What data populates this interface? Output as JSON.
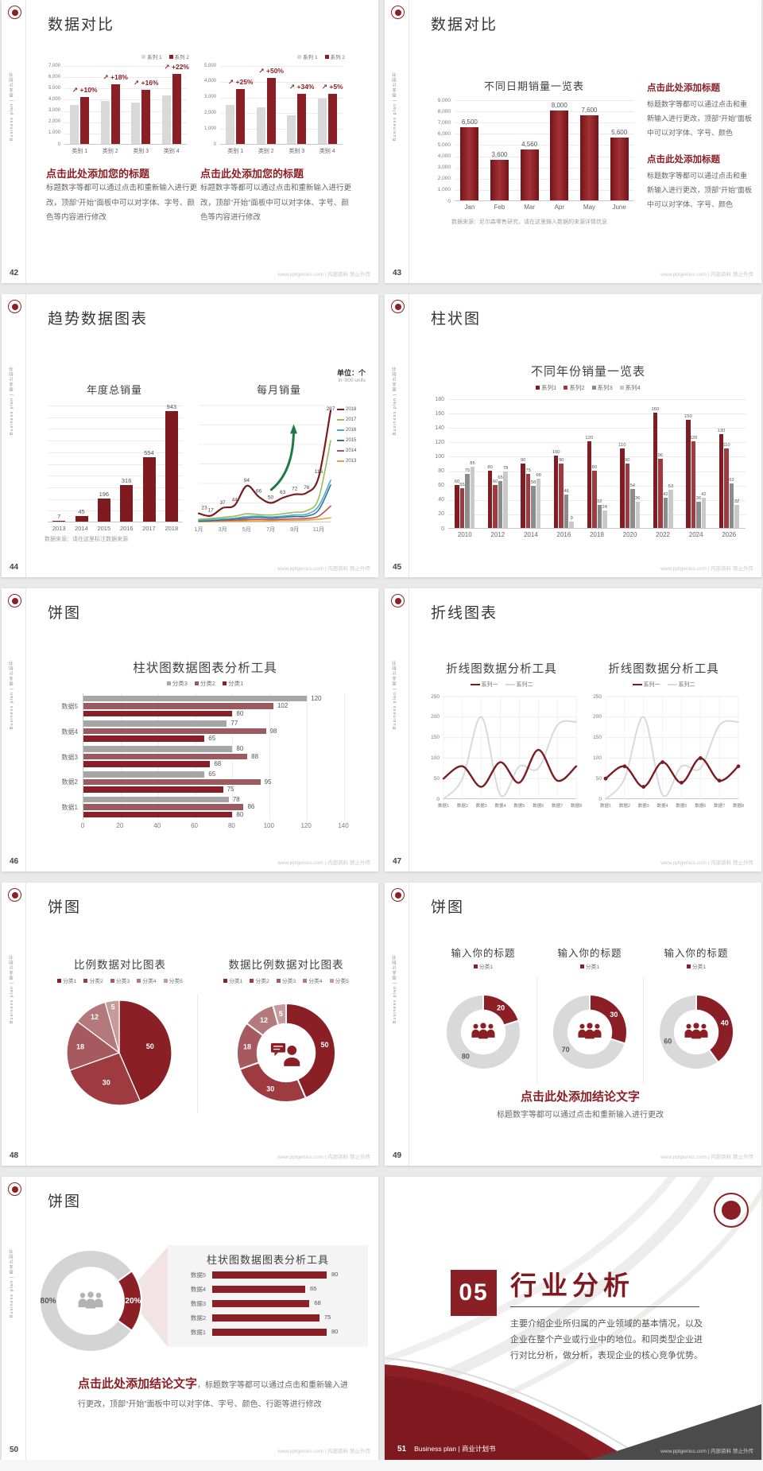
{
  "meta": {
    "footer": "www.pptgenius.com | 内部资料 禁止外传",
    "sidebar": "Business plan | 商业计划书",
    "accent_red": "#8a2026",
    "gray_bar": "#d9d9d9"
  },
  "slides": [
    {
      "page": "42",
      "title": "数据对比",
      "heading": "点击此处添加您的标题",
      "body": "标题数字等都可以通过点击和重新输入进行更改，顶部“开始”面板中可以对字体、字号、颜色等内容进行修改",
      "charts": [
        {
          "type": "vbar",
          "categories": [
            "类别 1",
            "类别 2",
            "类别 3",
            "类别 4"
          ],
          "ymax": 7000,
          "ystep": 1000,
          "thousands": true,
          "pct_color": "#8a2026",
          "pct_labels": [
            "+10%",
            "+18%",
            "+16%",
            "+22%"
          ],
          "series": [
            {
              "name": "系列 1",
              "color": "#d9d9d9",
              "values": [
                3500,
                3800,
                3700,
                4300
              ]
            },
            {
              "name": "系列 2",
              "color": "#8a2026",
              "values": [
                4200,
                5300,
                4800,
                6200
              ]
            }
          ]
        },
        {
          "type": "vbar",
          "categories": [
            "类别 1",
            "类别 2",
            "类别 3",
            "类别 4"
          ],
          "ymax": 5000,
          "ystep": 1000,
          "thousands": true,
          "pct_color": "#8a2026",
          "pct_labels": [
            "+25%",
            "+50%",
            "+34%",
            "+5%"
          ],
          "series": [
            {
              "name": "系列 1",
              "color": "#d9d9d9",
              "values": [
                2500,
                2300,
                1800,
                2900
              ]
            },
            {
              "name": "系列 2",
              "color": "#8a2026",
              "values": [
                3500,
                4200,
                3200,
                3200
              ]
            }
          ]
        }
      ]
    },
    {
      "page": "43",
      "title": "数据对比",
      "footnote": "数据来源：尼尔森零售研究，请在这里输入数据的来源详情信息",
      "blocks": [
        {
          "heading": "点击此处添加标题",
          "body": "标题数字等都可以通过点击和重新输入进行更改，顶部“开始”面板中可以对字体、字号、颜色"
        },
        {
          "heading": "点击此处添加标题",
          "body": "标题数字等都可以通过点击和重新输入进行更改，顶部“开始”面板中可以对字体、字号、颜色"
        }
      ],
      "charts": [
        {
          "type": "vbar",
          "title": "不同日期销量一览表",
          "categories": [
            "Jan",
            "Feb",
            "Mar",
            "Apr",
            "May",
            "June"
          ],
          "ymax": 9000,
          "ystep": 1000,
          "thousands": true,
          "show_values": true,
          "series": [
            {
              "name": "销量",
              "color": "grad",
              "values": [
                6500,
                3600,
                4560,
                8000,
                7600,
                5600
              ]
            }
          ]
        }
      ]
    },
    {
      "page": "44",
      "title": "趋势数据图表",
      "unit_cn": "单位：个",
      "unit_en": "in '000 units",
      "footnote": "数据来源：请在这里标注数据来源",
      "charts": [
        {
          "type": "vbar",
          "title": "年度总销量",
          "categories": [
            "2013",
            "2014",
            "2015",
            "2016",
            "2017",
            "2018"
          ],
          "ymax": 1000,
          "ystep": 100,
          "hide_y_labels": true,
          "show_values": true,
          "series": [
            {
              "name": "年度总销量",
              "color": "#7f1b20",
              "values": [
                7,
                45,
                196,
                316,
                554,
                943
              ]
            }
          ]
        },
        {
          "type": "line",
          "title": "每月销量",
          "ymax": 300,
          "ystep": 50,
          "hide_y_labels": true,
          "green_arrow": true,
          "x_labels": [
            "1月",
            "",
            "3月",
            "",
            "5月",
            "",
            "7月",
            "",
            "9月",
            "",
            "11月",
            ""
          ],
          "series": [
            {
              "name": "2018",
              "color": "#7b1b20",
              "width": 2.2,
              "labels": true,
              "values": [
                23,
                17,
                37,
                44,
                94,
                66,
                50,
                63,
                72,
                76,
                116,
                287
              ]
            },
            {
              "name": "2017",
              "color": "#9bbb59",
              "width": 1.6,
              "values": [
                8,
                10,
                13,
                16,
                22,
                20,
                19,
                22,
                26,
                30,
                62,
                210
              ]
            },
            {
              "name": "2016",
              "color": "#4bacc6",
              "width": 1.6,
              "values": [
                6,
                7,
                9,
                11,
                15,
                16,
                14,
                16,
                19,
                21,
                42,
                108
              ]
            },
            {
              "name": "2015",
              "color": "#2f6f9f",
              "width": 1.6,
              "values": [
                4,
                5,
                7,
                9,
                11,
                13,
                11,
                13,
                15,
                16,
                32,
                96
              ]
            },
            {
              "name": "2014",
              "color": "#c0504d",
              "width": 1.6,
              "values": [
                3,
                4,
                5,
                6,
                7,
                8,
                7,
                8,
                9,
                10,
                16,
                42
              ]
            },
            {
              "name": "2013",
              "color": "#e8a33d",
              "width": 1.6,
              "values": [
                2,
                2,
                3,
                3,
                4,
                4,
                4,
                5,
                5,
                6,
                8,
                12
              ]
            }
          ]
        }
      ]
    },
    {
      "page": "45",
      "title": "柱状图",
      "charts": [
        {
          "type": "vbar",
          "title": "不同年份销量一览表",
          "legend": true,
          "show_values": true,
          "ymax": 180,
          "ystep": 20,
          "categories": [
            "2010",
            "2012",
            "2014",
            "2016",
            "2018",
            "2020",
            "2022",
            "2024",
            "2026"
          ],
          "series": [
            {
              "name": "系列1",
              "color": "#7f1d23",
              "values": [
                60,
                80,
                90,
                100,
                120,
                110,
                160,
                150,
                130
              ]
            },
            {
              "name": "系列2",
              "color": "#9e3a40",
              "values": [
                55,
                60,
                75,
                90,
                80,
                90,
                96,
                120,
                110
              ]
            },
            {
              "name": "系列3",
              "color": "#8c8c8c",
              "values": [
                75,
                65,
                58,
                46,
                32,
                54,
                42,
                36,
                62
              ]
            },
            {
              "name": "系列4",
              "color": "#c9c9c9",
              "values": [
                85,
                78,
                68,
                9,
                24,
                36,
                53,
                42,
                32
              ]
            }
          ]
        }
      ]
    },
    {
      "page": "46",
      "title": "饼图",
      "charts": [
        {
          "type": "hbar",
          "title": "柱状图数据图表分析工具",
          "xmax": 140,
          "xstep": 20,
          "categories": [
            "数据5",
            "数据4",
            "数据3",
            "数据2",
            "数据1"
          ],
          "series": [
            {
              "name": "分类3",
              "color": "#a6a6a6",
              "values": [
                120,
                77,
                80,
                65,
                78
              ]
            },
            {
              "name": "分类2",
              "color": "#9c5a5f",
              "values": [
                102,
                98,
                88,
                95,
                86
              ]
            },
            {
              "name": "分类1",
              "color": "#8a2026",
              "values": [
                80,
                65,
                68,
                75,
                80
              ]
            }
          ]
        }
      ]
    },
    {
      "page": "47",
      "title": "折线图表",
      "charts": [
        {
          "type": "line",
          "title": "折线图数据分析工具",
          "ymax": 250,
          "ystep": 50,
          "vgrid": true,
          "x_labels": [
            "数据1",
            "数据2",
            "数据3",
            "数据4",
            "数据5",
            "数据6",
            "数据7",
            "数据8"
          ],
          "series": [
            {
              "name": "系列一",
              "color": "#7b1b20",
              "width": 2.4,
              "values": [
                50,
                80,
                30,
                90,
                40,
                120,
                45,
                80
              ]
            },
            {
              "name": "系列二",
              "color": "#d9d9d9",
              "width": 2,
              "values": [
                0,
                50,
                200,
                10,
                80,
                75,
                180,
                188
              ]
            }
          ]
        },
        {
          "type": "line",
          "title": "折线图数据分析工具",
          "ymax": 250,
          "ystep": 50,
          "vgrid": true,
          "x_labels": [
            "数据1",
            "数据2",
            "数据3",
            "数据4",
            "数据5",
            "数据6",
            "数据7",
            "数据8"
          ],
          "series": [
            {
              "name": "系列一",
              "color": "#7b1b20",
              "width": 2.4,
              "marker": true,
              "values": [
                50,
                80,
                30,
                90,
                40,
                100,
                45,
                80
              ]
            },
            {
              "name": "系列二",
              "color": "#d9d9d9",
              "width": 2,
              "values": [
                0,
                50,
                200,
                10,
                80,
                75,
                180,
                188
              ]
            }
          ]
        }
      ]
    },
    {
      "page": "48",
      "title": "饼图",
      "charts": [
        {
          "type": "pie",
          "title": "比例数据对比图表",
          "values": [
            50,
            30,
            18,
            12,
            5
          ],
          "labels": [
            "50",
            "30",
            "18",
            "12",
            "5"
          ],
          "colors": [
            "#8a2026",
            "#9d3b41",
            "#a65a5f",
            "#b3797d",
            "#c59b9e"
          ],
          "legend": [
            {
              "name": "分类1",
              "color": "#8a2026"
            },
            {
              "name": "分类2",
              "color": "#9d3b41"
            },
            {
              "name": "分类3",
              "color": "#a65a5f"
            },
            {
              "name": "分类4",
              "color": "#b3797d"
            },
            {
              "name": "分类5",
              "color": "#c59b9e"
            }
          ]
        },
        {
          "type": "pie",
          "title": "数据比例数据对比图表",
          "values": [
            50,
            30,
            18,
            12,
            5
          ],
          "labels": [
            "50",
            "30",
            "18",
            "12",
            "5"
          ],
          "inner": 0.6,
          "icon": "personBubble",
          "icon_color": "#8a2026",
          "colors": [
            "#8a2026",
            "#9d3b41",
            "#a65a5f",
            "#b3797d",
            "#c59b9e"
          ],
          "legend": [
            {
              "name": "分类1",
              "color": "#8a2026"
            },
            {
              "name": "分类2",
              "color": "#9d3b41"
            },
            {
              "name": "分类3",
              "color": "#a65a5f"
            },
            {
              "name": "分类4",
              "color": "#b3797d"
            },
            {
              "name": "分类5",
              "color": "#c59b9e"
            }
          ]
        }
      ]
    },
    {
      "page": "49",
      "title": "饼图",
      "conclusion": "点击此处添加结论文字",
      "conclusion_sub": "标题数字等都可以通过点击和重新输入进行更改",
      "charts": [
        {
          "type": "pie",
          "title": "输入你的标题",
          "values": [
            20,
            80
          ],
          "labels": [
            "20",
            "80"
          ],
          "label_colors": [
            "#fff",
            "#595959"
          ],
          "colors": [
            "#8a2026",
            "#d9d9d9"
          ],
          "inner": 0.6,
          "icon": "people",
          "icon_color": "#8a2026",
          "legend": [
            {
              "name": "分类1",
              "color": "#8a2026"
            }
          ]
        },
        {
          "type": "pie",
          "title": "输入你的标题",
          "values": [
            30,
            70
          ],
          "labels": [
            "30",
            "70"
          ],
          "label_colors": [
            "#fff",
            "#595959"
          ],
          "colors": [
            "#8a2026",
            "#d9d9d9"
          ],
          "inner": 0.6,
          "icon": "people",
          "icon_color": "#8a2026",
          "legend": [
            {
              "name": "分类1",
              "color": "#8a2026"
            }
          ]
        },
        {
          "type": "pie",
          "title": "输入你的标题",
          "values": [
            40,
            60
          ],
          "labels": [
            "40",
            "60"
          ],
          "label_colors": [
            "#fff",
            "#595959"
          ],
          "colors": [
            "#8a2026",
            "#d9d9d9"
          ],
          "inner": 0.6,
          "icon": "people",
          "icon_color": "#8a2026",
          "legend": [
            {
              "name": "分类1",
              "color": "#8a2026"
            }
          ]
        }
      ]
    },
    {
      "page": "50",
      "title": "饼图",
      "panel_title": "柱状图数据图表分析工具",
      "conclusion": "点击此处添加结论文字",
      "conclusion_rest": "，标题数字等都可以通过点击和重新输入进行更改，顶部“开始”面板中可以对字体、字号、颜色、行距等进行修改",
      "charts": [
        {
          "type": "pie",
          "values": [
            20,
            80
          ],
          "labels": [
            "20%",
            "80%"
          ],
          "label_colors": [
            "#fff",
            "#555"
          ],
          "colors": [
            "#8a2026",
            "#d4d4d4"
          ],
          "inner": 0.67,
          "start": 54,
          "icon": "people",
          "icon_color": "#b3b3b3"
        },
        {
          "type": "rows",
          "color": "#8a2026",
          "categories": [
            "数据5",
            "数据4",
            "数据3",
            "数据2",
            "数据1"
          ],
          "values": [
            80,
            65,
            68,
            75,
            80
          ]
        }
      ]
    },
    {
      "page": "51",
      "number": "05",
      "title": "行业分析",
      "body": "主要介绍企业所归属的产业领域的基本情况，以及企业在整个产业或行业中的地位。和同类型企业进行对比分析，做分析，表现企业的核心竞争优势。",
      "brand": "Business plan | 商业计划书"
    }
  ]
}
